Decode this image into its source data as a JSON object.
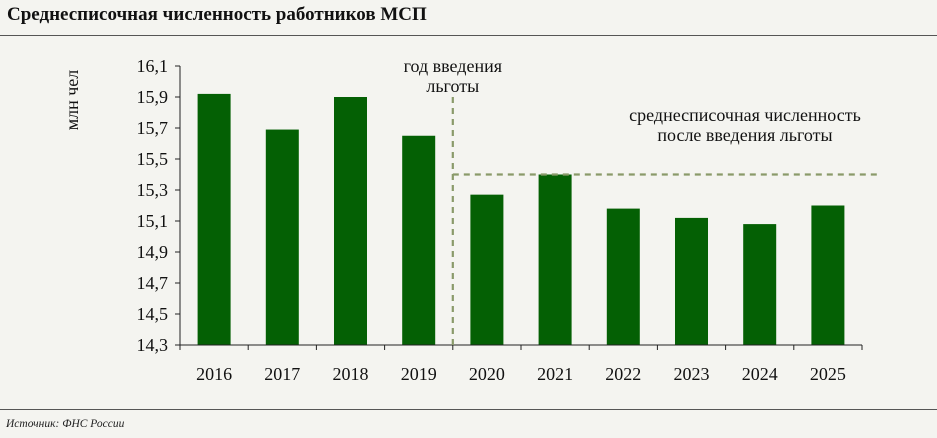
{
  "title": "Среднесписочная численность работников МСП",
  "source": "Источник: ФНС России",
  "chart_data": {
    "type": "bar",
    "categories": [
      "2016",
      "2017",
      "2018",
      "2019",
      "2020",
      "2021",
      "2022",
      "2023",
      "2024",
      "2025"
    ],
    "values": [
      15.92,
      15.69,
      15.9,
      15.65,
      15.27,
      15.4,
      15.18,
      15.12,
      15.08,
      15.2
    ],
    "ylabel": "млн чел",
    "ylim": [
      14.3,
      16.1
    ],
    "yticks": [
      "16,1",
      "15,9",
      "15,7",
      "15,5",
      "15,3",
      "15,1",
      "14,9",
      "14,7",
      "14,5",
      "14,3"
    ],
    "ytick_values": [
      16.1,
      15.9,
      15.7,
      15.5,
      15.3,
      15.1,
      14.9,
      14.7,
      14.5,
      14.3
    ],
    "bar_color": "#046004",
    "reference_color": "#8a9a6a",
    "vertical_marker": {
      "between": [
        "2019",
        "2020"
      ],
      "label_lines": [
        "год введения",
        "льготы"
      ]
    },
    "horizontal_reference": {
      "value": 15.4,
      "from_category": "2020",
      "label_lines": [
        "среднесписочная численность",
        "после введения льготы"
      ]
    }
  }
}
